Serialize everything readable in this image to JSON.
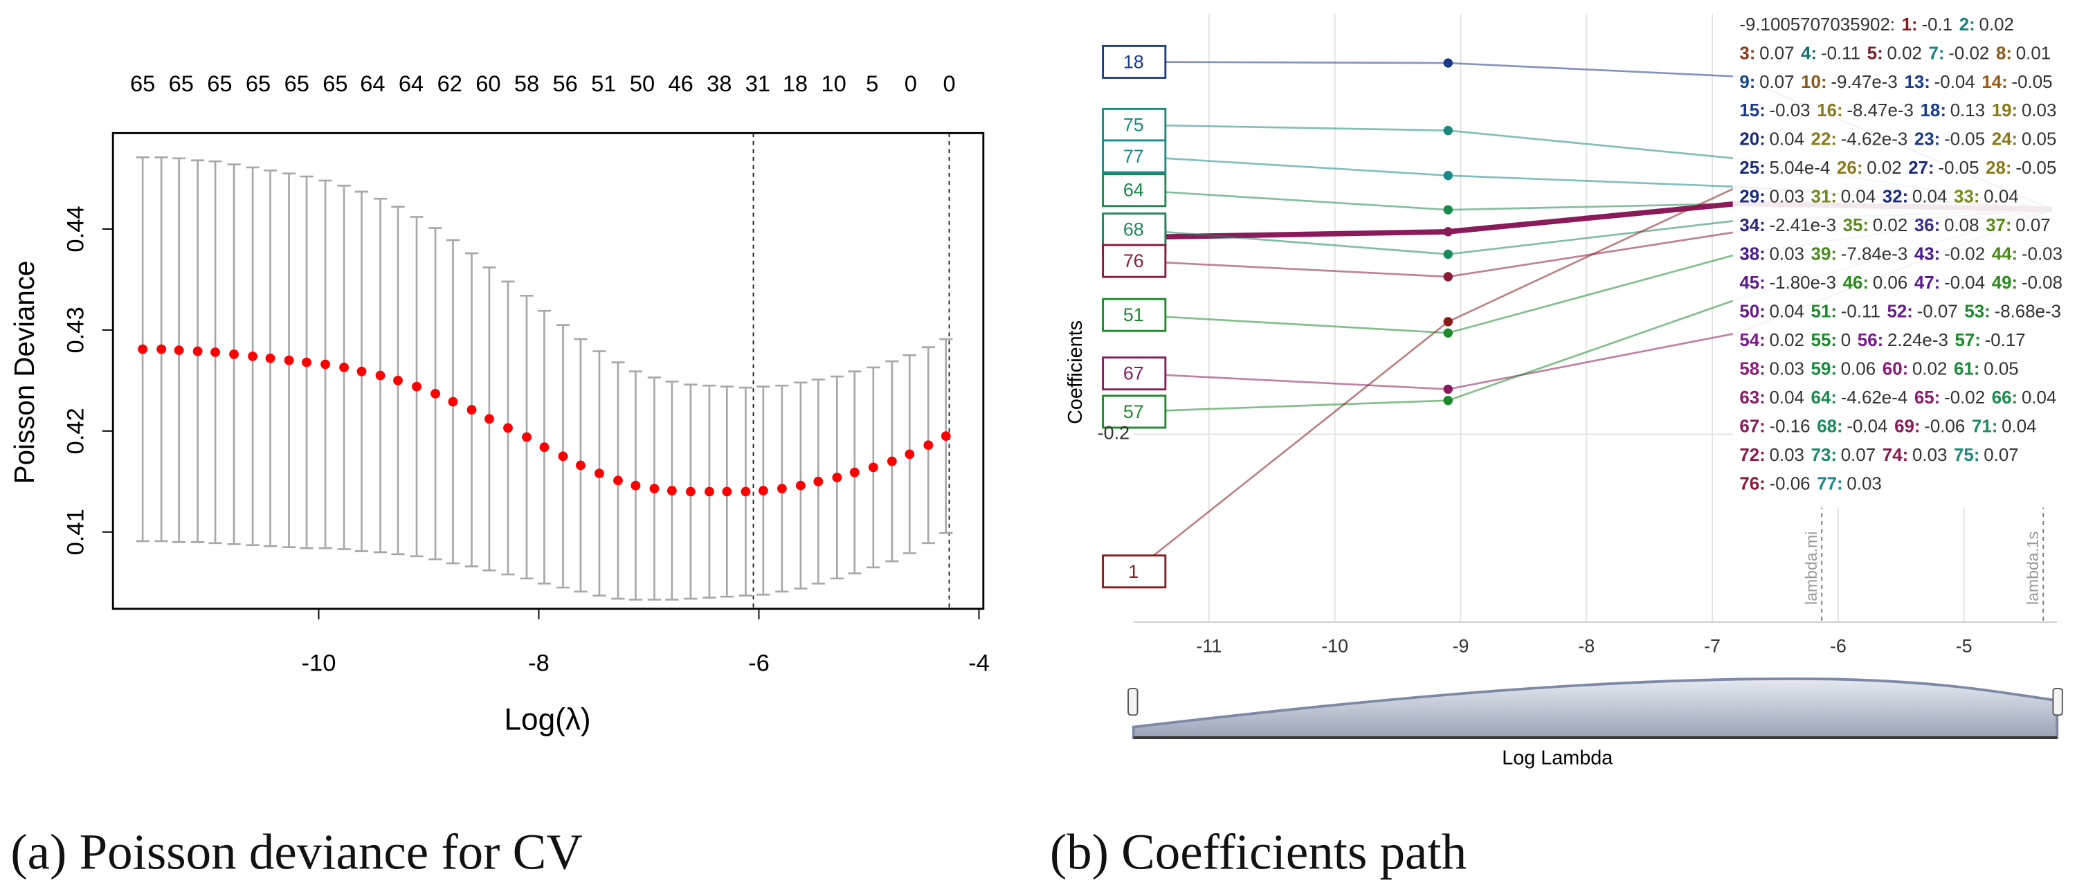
{
  "chart_data": [
    {
      "type": "errorbar",
      "y_label": "Poisson Deviance",
      "x_label": "Log(λ)",
      "caption": "(a) Poisson deviance for CV",
      "x": [
        -11.6,
        -11.43,
        -11.27,
        -11.1,
        -10.94,
        -10.77,
        -10.6,
        -10.44,
        -10.27,
        -10.11,
        -9.94,
        -9.77,
        -9.61,
        -9.44,
        -9.28,
        -9.11,
        -8.94,
        -8.78,
        -8.61,
        -8.45,
        -8.28,
        -8.11,
        -7.95,
        -7.78,
        -7.62,
        -7.45,
        -7.28,
        -7.12,
        -6.95,
        -6.79,
        -6.62,
        -6.45,
        -6.29,
        -6.12,
        -5.96,
        -5.79,
        -5.62,
        -5.46,
        -5.29,
        -5.13,
        -4.96,
        -4.79,
        -4.63,
        -4.46,
        -4.3
      ],
      "values": [
        0.4281,
        0.4281,
        0.428,
        0.4279,
        0.4278,
        0.4276,
        0.4274,
        0.4272,
        0.427,
        0.4268,
        0.4266,
        0.4263,
        0.4259,
        0.4255,
        0.425,
        0.4244,
        0.4237,
        0.4229,
        0.4221,
        0.4212,
        0.4203,
        0.4194,
        0.4184,
        0.4175,
        0.4166,
        0.4158,
        0.4151,
        0.4146,
        0.4143,
        0.4141,
        0.414,
        0.414,
        0.414,
        0.414,
        0.4141,
        0.4143,
        0.4146,
        0.415,
        0.4154,
        0.4159,
        0.4164,
        0.417,
        0.4177,
        0.4186,
        0.4195
      ],
      "errors": [
        0.019,
        0.019,
        0.019,
        0.0189,
        0.0189,
        0.0188,
        0.0187,
        0.0186,
        0.0185,
        0.0184,
        0.0182,
        0.018,
        0.0178,
        0.0175,
        0.0172,
        0.0168,
        0.0164,
        0.016,
        0.0155,
        0.015,
        0.0145,
        0.014,
        0.0135,
        0.013,
        0.0125,
        0.0121,
        0.0117,
        0.0113,
        0.011,
        0.0108,
        0.0106,
        0.0105,
        0.0104,
        0.0103,
        0.0103,
        0.0102,
        0.0102,
        0.0101,
        0.01,
        0.01,
        0.0099,
        0.0099,
        0.0098,
        0.0097,
        0.0096
      ],
      "color": "#ff0000",
      "error_color": "#a8a8a8",
      "xlim": [
        -11.87,
        -3.96
      ],
      "ylim": [
        0.4024,
        0.4495
      ],
      "xticks": [
        -10,
        -8,
        -6,
        -4
      ],
      "yticks": [
        0.41,
        0.42,
        0.43,
        0.44
      ],
      "vlines": [
        -6.05,
        -4.27
      ],
      "top_ticks": [
        {
          "value": -11.6,
          "label": "65"
        },
        {
          "value": -11.25,
          "label": "65"
        },
        {
          "value": -10.9,
          "label": "65"
        },
        {
          "value": -10.55,
          "label": "65"
        },
        {
          "value": -10.2,
          "label": "65"
        },
        {
          "value": -9.85,
          "label": "65"
        },
        {
          "value": -9.51,
          "label": "64"
        },
        {
          "value": -9.16,
          "label": "64"
        },
        {
          "value": -8.81,
          "label": "62"
        },
        {
          "value": -8.46,
          "label": "60"
        },
        {
          "value": -8.11,
          "label": "58"
        },
        {
          "value": -7.76,
          "label": "56"
        },
        {
          "value": -7.41,
          "label": "51"
        },
        {
          "value": -7.06,
          "label": "50"
        },
        {
          "value": -6.71,
          "label": "46"
        },
        {
          "value": -6.36,
          "label": "38"
        },
        {
          "value": -6.01,
          "label": "31"
        },
        {
          "value": -5.67,
          "label": "18"
        },
        {
          "value": -5.32,
          "label": "10"
        },
        {
          "value": -4.97,
          "label": "5"
        },
        {
          "value": -4.62,
          "label": "0"
        },
        {
          "value": -4.27,
          "label": "0"
        }
      ]
    },
    {
      "type": "path",
      "y_label": "Coefficients",
      "x_label": "Log Lambda",
      "caption": "(b) Coefficients path",
      "x": [
        -11.6,
        -9.1,
        -6.8,
        -4.3
      ],
      "series": [
        {
          "name": "18",
          "color": "#1a3a8b",
          "values": [
            0.131,
            0.13,
            0.118,
            0
          ]
        },
        {
          "name": "75",
          "color": "#1a8a7a",
          "values": [
            0.075,
            0.07,
            0.045,
            0
          ]
        },
        {
          "name": "77",
          "color": "#1a8a8a",
          "values": [
            0.047,
            0.03,
            0.02,
            0
          ]
        },
        {
          "name": "64",
          "color": "#1a8a4a",
          "values": [
            0.017,
            -0.0005,
            0.005,
            0
          ]
        },
        {
          "name": "65",
          "color": "#8a1a5a",
          "values": [
            -0.025,
            -0.02,
            0.005,
            0
          ],
          "line_width": 4
        },
        {
          "name": "68",
          "color": "#1a8a5a",
          "values": [
            -0.018,
            -0.04,
            -0.01,
            0
          ]
        },
        {
          "name": "76",
          "color": "#8a1a3a",
          "values": [
            -0.046,
            -0.06,
            -0.02,
            0
          ]
        },
        {
          "name": "51",
          "color": "#1a8a2a",
          "values": [
            -0.094,
            -0.11,
            -0.04,
            0
          ]
        },
        {
          "name": "67",
          "color": "#8a1a5a",
          "values": [
            -0.146,
            -0.16,
            -0.11,
            0
          ]
        },
        {
          "name": "57",
          "color": "#1a8a2a",
          "values": [
            -0.18,
            -0.17,
            -0.08,
            0
          ]
        },
        {
          "name": "1",
          "color": "#8b1a1a",
          "values": [
            -0.322,
            -0.1,
            0.02,
            0
          ]
        }
      ],
      "xlim": [
        -11.6,
        -4.26
      ],
      "ylim": [
        -0.367,
        0.174
      ],
      "xticks": [
        -11,
        -10,
        -9,
        -8,
        -7,
        -6,
        -5
      ],
      "yticks": [
        -0.2
      ],
      "grid": true,
      "vlines": [
        {
          "value": -6.13,
          "label": "lambda.mi"
        },
        {
          "value": -4.37,
          "label": "lambda.1s"
        }
      ],
      "tooltip": {
        "title": "-9.1005707035902:",
        "rows": [
          [
            {
              "name": "1:",
              "value": -0.1,
              "color": "#8b1a1a"
            },
            {
              "name": "2:",
              "value": 0.02,
              "color": "#1a8080"
            }
          ],
          [
            {
              "name": "3:",
              "value": 0.07,
              "color": "#8b3a1a"
            },
            {
              "name": "4:",
              "value": -0.11,
              "color": "#1a7070"
            },
            {
              "name": "5:",
              "value": 0.02,
              "color": "#7a1a2a"
            },
            {
              "name": "7:",
              "value": -0.02,
              "color": "#1a8080"
            },
            {
              "name": "8:",
              "value": 0.01,
              "color": "#8b5a1a"
            }
          ],
          [
            {
              "name": "9:",
              "value": 0.07,
              "color": "#1a4a8b"
            },
            {
              "name": "10:",
              "value": -0.00947,
              "label": "-9.47e-3",
              "color": "#8b5a1a"
            },
            {
              "name": "13:",
              "value": -0.04,
              "color": "#1a3a8b"
            },
            {
              "name": "14:",
              "value": -0.05,
              "color": "#9a5a10"
            }
          ],
          [
            {
              "name": "15:",
              "value": -0.03,
              "color": "#1a3a8b"
            },
            {
              "name": "16:",
              "value": -0.00847,
              "label": "-8.47e-3",
              "color": "#8b7a1a"
            },
            {
              "name": "18:",
              "value": 0.13,
              "color": "#1a3a8b"
            },
            {
              "name": "19:",
              "value": 0.03,
              "color": "#8b7a1a"
            }
          ],
          [
            {
              "name": "20:",
              "value": 0.04,
              "color": "#1a2a7b"
            },
            {
              "name": "22:",
              "value": -0.00462,
              "label": "-4.62e-3",
              "color": "#8b7a1a"
            },
            {
              "name": "23:",
              "value": -0.05,
              "color": "#1a3a8b"
            },
            {
              "name": "24:",
              "value": 0.05,
              "color": "#8b7a1a"
            }
          ],
          [
            {
              "name": "25:",
              "value": 0.000504,
              "label": "5.04e-4",
              "color": "#1a2a7b"
            },
            {
              "name": "26:",
              "value": 0.02,
              "color": "#8b7a1a"
            },
            {
              "name": "27:",
              "value": -0.05,
              "color": "#1a2a7b"
            },
            {
              "name": "28:",
              "value": -0.05,
              "color": "#8b7a1a"
            }
          ],
          [
            {
              "name": "29:",
              "value": 0.03,
              "color": "#1a2a7b"
            },
            {
              "name": "31:",
              "value": 0.04,
              "color": "#6a8a1a"
            },
            {
              "name": "32:",
              "value": 0.04,
              "color": "#1a2a7b"
            },
            {
              "name": "33:",
              "value": 0.04,
              "color": "#7a8a1a"
            }
          ],
          [
            {
              "name": "34:",
              "value": -0.00241,
              "label": "-2.41e-3",
              "color": "#2a2a7b"
            },
            {
              "name": "35:",
              "value": 0.02,
              "color": "#5a8a1a"
            },
            {
              "name": "36:",
              "value": 0.08,
              "color": "#3a2a8b"
            },
            {
              "name": "37:",
              "value": 0.07,
              "color": "#5a8a1a"
            }
          ],
          [
            {
              "name": "38:",
              "value": 0.03,
              "color": "#4a1a8b"
            },
            {
              "name": "39:",
              "value": -0.00784,
              "label": "-7.84e-3",
              "color": "#4a8a1a"
            },
            {
              "name": "43:",
              "value": -0.02,
              "color": "#4a1a8b"
            },
            {
              "name": "44:",
              "value": -0.03,
              "color": "#4a8a1a"
            }
          ],
          [
            {
              "name": "45:",
              "value": -0.0018,
              "label": "-1.80e-3",
              "color": "#5a1a8b"
            },
            {
              "name": "46:",
              "value": 0.06,
              "color": "#2a8a1a"
            },
            {
              "name": "47:",
              "value": -0.04,
              "color": "#5a1a8b"
            },
            {
              "name": "49:",
              "value": -0.08,
              "color": "#2a8a1a"
            }
          ],
          [
            {
              "name": "50:",
              "value": 0.04,
              "color": "#6a1a8b"
            },
            {
              "name": "51:",
              "value": -0.11,
              "color": "#1a8a2a"
            },
            {
              "name": "52:",
              "value": -0.07,
              "color": "#6a1a8b"
            },
            {
              "name": "53:",
              "value": -0.00868,
              "label": "-8.68e-3",
              "color": "#1a8a2a"
            }
          ],
          [
            {
              "name": "54:",
              "value": 0.02,
              "color": "#7a1a8b"
            },
            {
              "name": "55:",
              "value": 0,
              "color": "#1a8a2a"
            },
            {
              "name": "56:",
              "value": 0.00224,
              "label": "2.24e-3",
              "color": "#7a1a8b"
            },
            {
              "name": "57:",
              "value": -0.17,
              "color": "#1a8a2a"
            }
          ],
          [
            {
              "name": "58:",
              "value": 0.03,
              "color": "#8a1a7a"
            },
            {
              "name": "59:",
              "value": 0.06,
              "color": "#1a8a3a"
            },
            {
              "name": "60:",
              "value": 0.02,
              "color": "#8a1a7a"
            },
            {
              "name": "61:",
              "value": 0.05,
              "color": "#1a8a3a"
            }
          ],
          [
            {
              "name": "63:",
              "value": 0.04,
              "color": "#8a1a6a"
            },
            {
              "name": "64:",
              "value": -0.000462,
              "label": "-4.62e-4",
              "color": "#1a8a4a"
            },
            {
              "name": "65:",
              "value": -0.02,
              "color": "#8a1a6a"
            },
            {
              "name": "66:",
              "value": 0.04,
              "color": "#1a8a4a"
            }
          ],
          [
            {
              "name": "67:",
              "value": -0.16,
              "color": "#8a1a5a"
            },
            {
              "name": "68:",
              "value": -0.04,
              "color": "#1a8a5a"
            },
            {
              "name": "69:",
              "value": -0.06,
              "color": "#8a1a5a"
            },
            {
              "name": "71:",
              "value": 0.04,
              "color": "#1a8a5a"
            }
          ],
          [
            {
              "name": "72:",
              "value": 0.03,
              "color": "#8a1a4a"
            },
            {
              "name": "73:",
              "value": 0.07,
              "color": "#1a8a6a"
            },
            {
              "name": "74:",
              "value": 0.03,
              "color": "#8a1a4a"
            },
            {
              "name": "75:",
              "value": 0.07,
              "color": "#1a8a7a"
            }
          ],
          [
            {
              "name": "76:",
              "value": -0.06,
              "color": "#8a1a3a"
            },
            {
              "name": "77:",
              "value": 0.03,
              "color": "#1a8a8a"
            }
          ]
        ]
      }
    }
  ]
}
